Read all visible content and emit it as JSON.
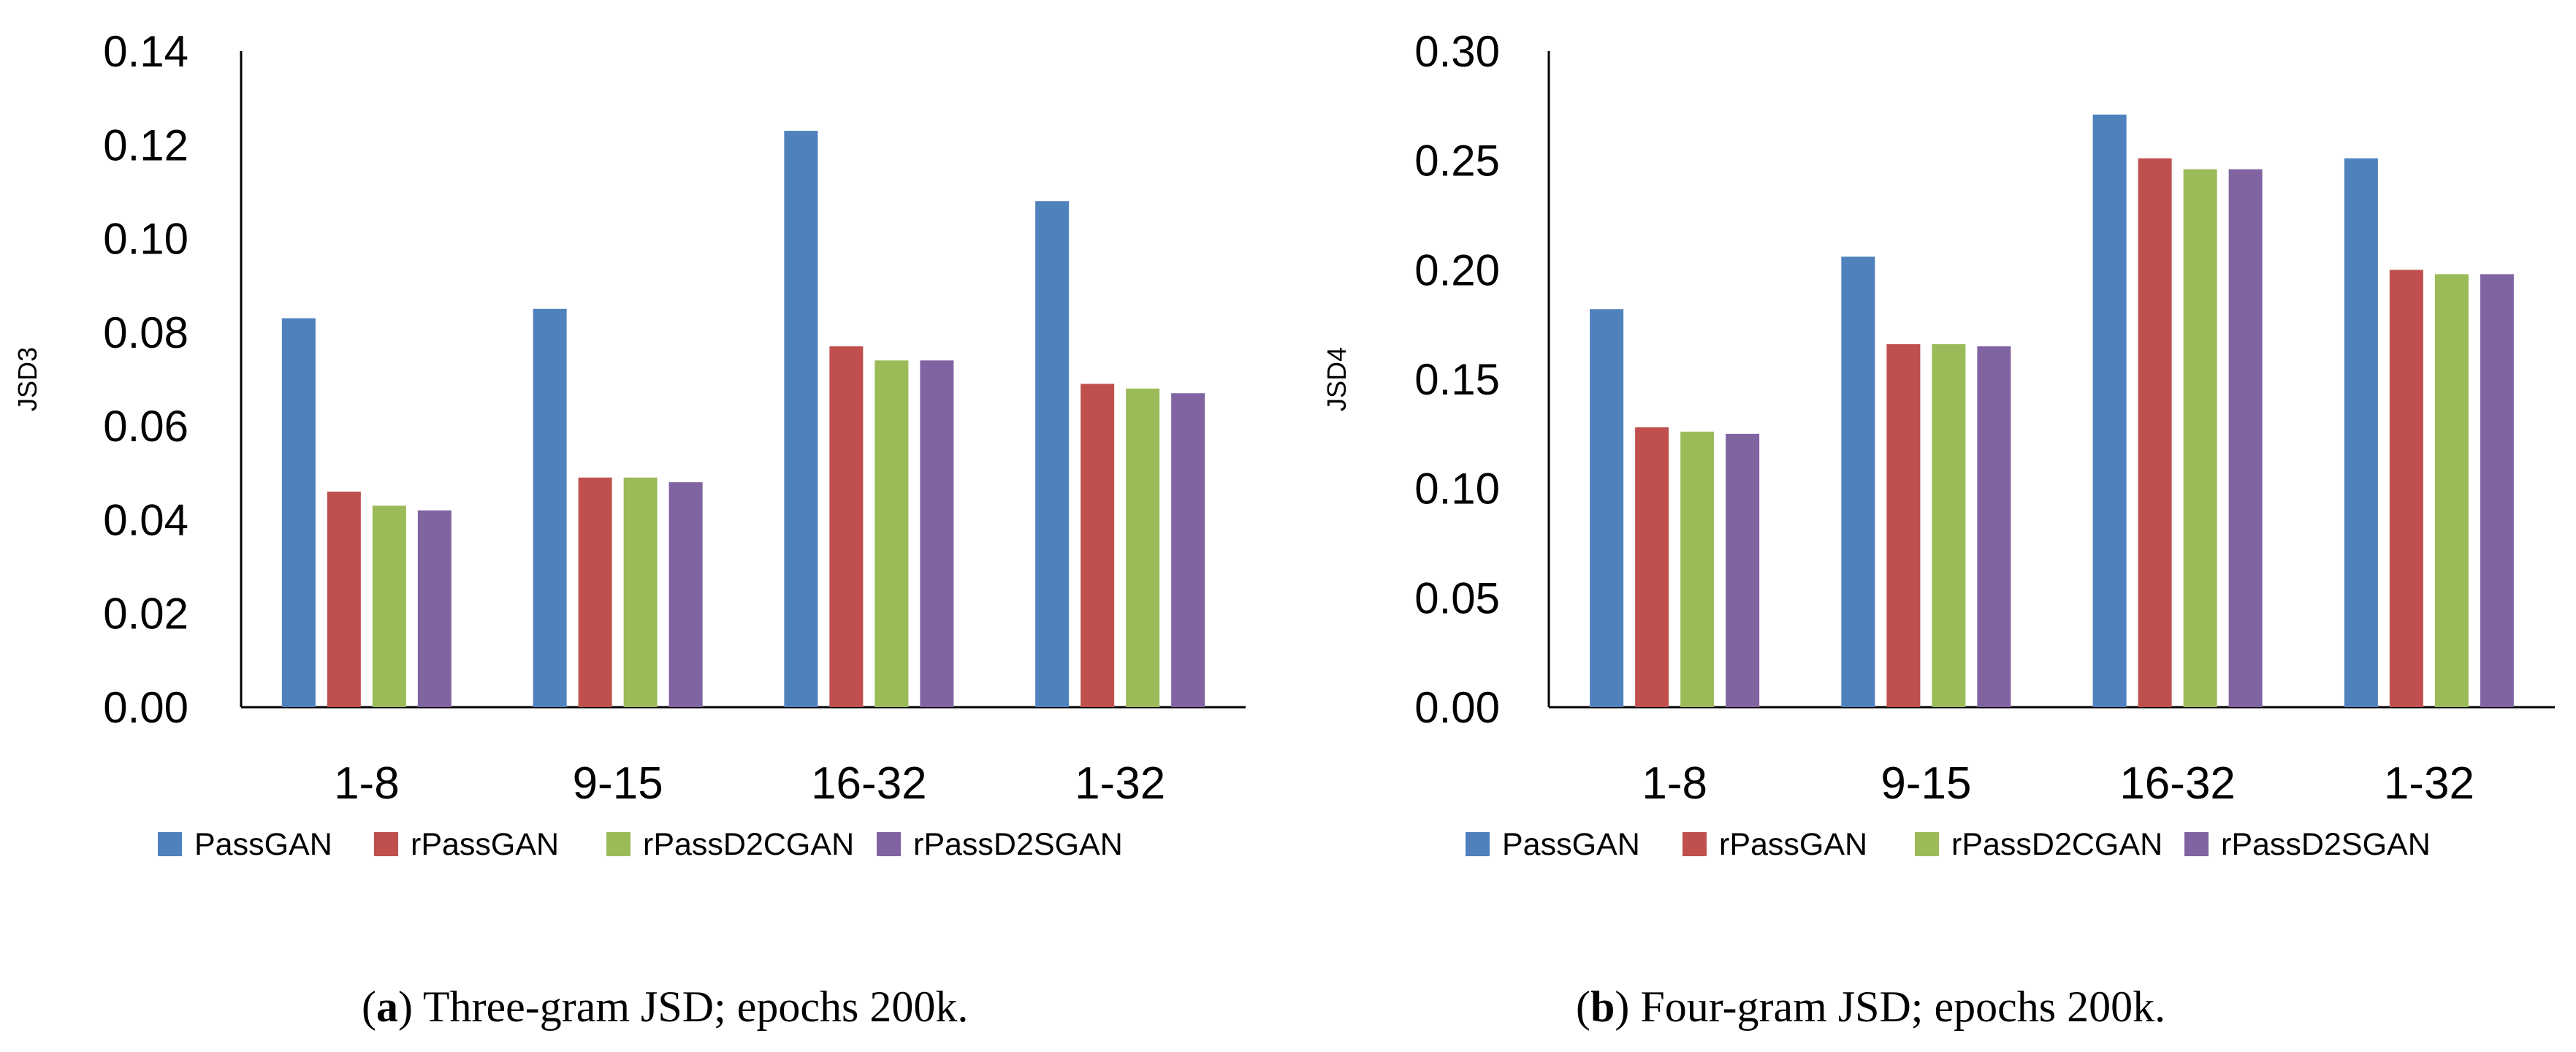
{
  "chart_data": [
    {
      "type": "bar",
      "title": "",
      "xlabel": "",
      "ylabel": "JSD3",
      "ylim": [
        0,
        0.14
      ],
      "yticks": [
        "0.00",
        "0.02",
        "0.04",
        "0.06",
        "0.08",
        "0.10",
        "0.12",
        "0.14"
      ],
      "categories": [
        "1-8",
        "9-15",
        "16-32",
        "1-32"
      ],
      "series": [
        {
          "name": "PassGAN",
          "color": "#4F81BD",
          "values": [
            0.083,
            0.085,
            0.123,
            0.108
          ]
        },
        {
          "name": "rPassGAN",
          "color": "#C0504D",
          "values": [
            0.046,
            0.049,
            0.077,
            0.069
          ]
        },
        {
          "name": "rPassD2CGAN",
          "color": "#9BBB59",
          "values": [
            0.043,
            0.049,
            0.074,
            0.068
          ]
        },
        {
          "name": "rPassD2SGAN",
          "color": "#8064A2",
          "values": [
            0.042,
            0.048,
            0.074,
            0.067
          ]
        }
      ],
      "caption_label": "a",
      "caption_text": " Three-gram JSD; epochs 200k."
    },
    {
      "type": "bar",
      "title": "",
      "xlabel": "",
      "ylabel": "JSD4",
      "ylim": [
        0,
        0.3
      ],
      "yticks": [
        "0.00",
        "0.05",
        "0.10",
        "0.15",
        "0.20",
        "0.25",
        "0.30"
      ],
      "categories": [
        "1-8",
        "9-15",
        "16-32",
        "1-32"
      ],
      "series": [
        {
          "name": "PassGAN",
          "color": "#4F81BD",
          "values": [
            0.182,
            0.206,
            0.271,
            0.251
          ]
        },
        {
          "name": "rPassGAN",
          "color": "#C0504D",
          "values": [
            0.128,
            0.166,
            0.251,
            0.2
          ]
        },
        {
          "name": "rPassD2CGAN",
          "color": "#9BBB59",
          "values": [
            0.126,
            0.166,
            0.246,
            0.198
          ]
        },
        {
          "name": "rPassD2SGAN",
          "color": "#8064A2",
          "values": [
            0.125,
            0.165,
            0.246,
            0.198
          ]
        }
      ],
      "caption_label": "b",
      "caption_text": " Four-gram JSD; epochs 200k."
    }
  ]
}
